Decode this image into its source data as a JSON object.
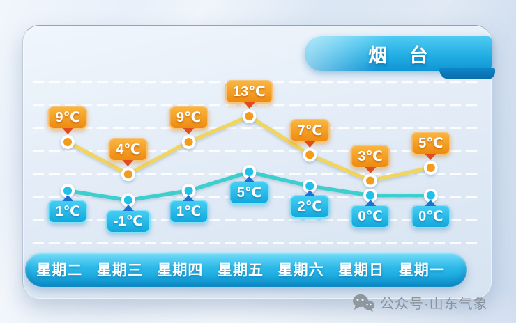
{
  "title": {
    "city": "烟 台"
  },
  "days": [
    "星期二",
    "星期三",
    "星期四",
    "星期五",
    "星期六",
    "星期日",
    "星期一"
  ],
  "footer": {
    "source": "公众号·山东气象",
    "icon": "wechat-icon"
  },
  "colors": {
    "high_line": "#f1d55e",
    "high_marker": "#f39b1b",
    "high_label_top": "#f9b53e",
    "high_label_bottom": "#ee8a10",
    "high_arrow": "#e04c1d",
    "low_line": "#3bd0cd",
    "low_marker": "#22bfe9",
    "low_label_top": "#45cef3",
    "low_label_bottom": "#12a7dc",
    "low_arrow": "#1b72d2",
    "ribbon_blue": "#1095d4",
    "daybar_blue": "#0f9ed8"
  },
  "chart_data": {
    "type": "line",
    "title": "烟台",
    "categories": [
      "星期二",
      "星期三",
      "星期四",
      "星期五",
      "星期六",
      "星期日",
      "星期一"
    ],
    "unit": "℃",
    "grid": "horizontal-dashed-white",
    "legend": "none",
    "series": [
      {
        "name": "high",
        "values": [
          9,
          4,
          9,
          13,
          7,
          3,
          5
        ],
        "labels": [
          "9℃",
          "4℃",
          "9℃",
          "13℃",
          "7℃",
          "3℃",
          "5℃"
        ]
      },
      {
        "name": "low",
        "values": [
          1,
          -1,
          1,
          5,
          2,
          0,
          0
        ],
        "labels": [
          "1℃",
          "-1℃",
          "1℃",
          "5℃",
          "2℃",
          "0℃",
          "0℃"
        ]
      }
    ]
  }
}
